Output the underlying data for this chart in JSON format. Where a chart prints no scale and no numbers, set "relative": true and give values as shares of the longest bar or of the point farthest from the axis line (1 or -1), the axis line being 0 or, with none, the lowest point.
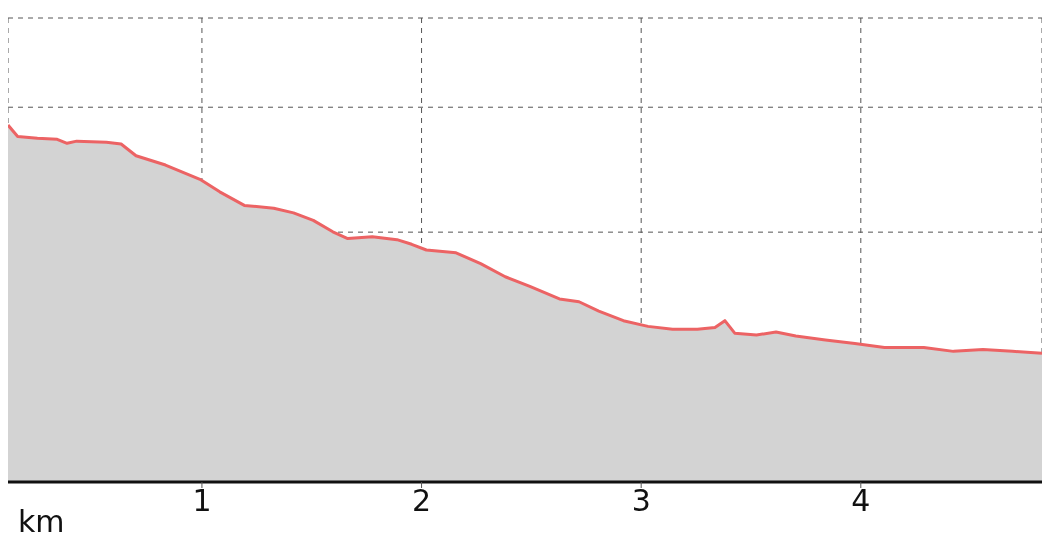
{
  "chart_data": {
    "type": "area",
    "relative": true,
    "xlabel": "km",
    "x": [
      0.117,
      0.161,
      0.251,
      0.341,
      0.386,
      0.43,
      0.565,
      0.632,
      0.7,
      0.834,
      0.991,
      1.081,
      1.193,
      1.327,
      1.417,
      1.507,
      1.596,
      1.664,
      1.776,
      1.888,
      1.955,
      2.022,
      2.157,
      2.269,
      2.381,
      2.493,
      2.628,
      2.717,
      2.807,
      2.919,
      3.031,
      3.143,
      3.256,
      3.336,
      3.381,
      3.426,
      3.525,
      3.614,
      3.704,
      3.839,
      3.973,
      4.108,
      4.287,
      4.422,
      4.556,
      4.691,
      4.825
    ],
    "series": [
      {
        "color": "#ec6364",
        "values": [
          1.0,
          0.968,
          0.963,
          0.96,
          0.949,
          0.955,
          0.952,
          0.947,
          0.914,
          0.888,
          0.848,
          0.813,
          0.775,
          0.767,
          0.754,
          0.733,
          0.701,
          0.682,
          0.687,
          0.679,
          0.666,
          0.65,
          0.642,
          0.612,
          0.575,
          0.548,
          0.513,
          0.505,
          0.479,
          0.452,
          0.436,
          0.428,
          0.428,
          0.433,
          0.452,
          0.417,
          0.412,
          0.42,
          0.409,
          0.398,
          0.388,
          0.377,
          0.377,
          0.366,
          0.371,
          0.366,
          0.361
        ]
      }
    ],
    "xlim": [
      0.117,
      4.825
    ],
    "xticks": [
      1,
      2,
      3,
      4
    ],
    "grid": true
  }
}
